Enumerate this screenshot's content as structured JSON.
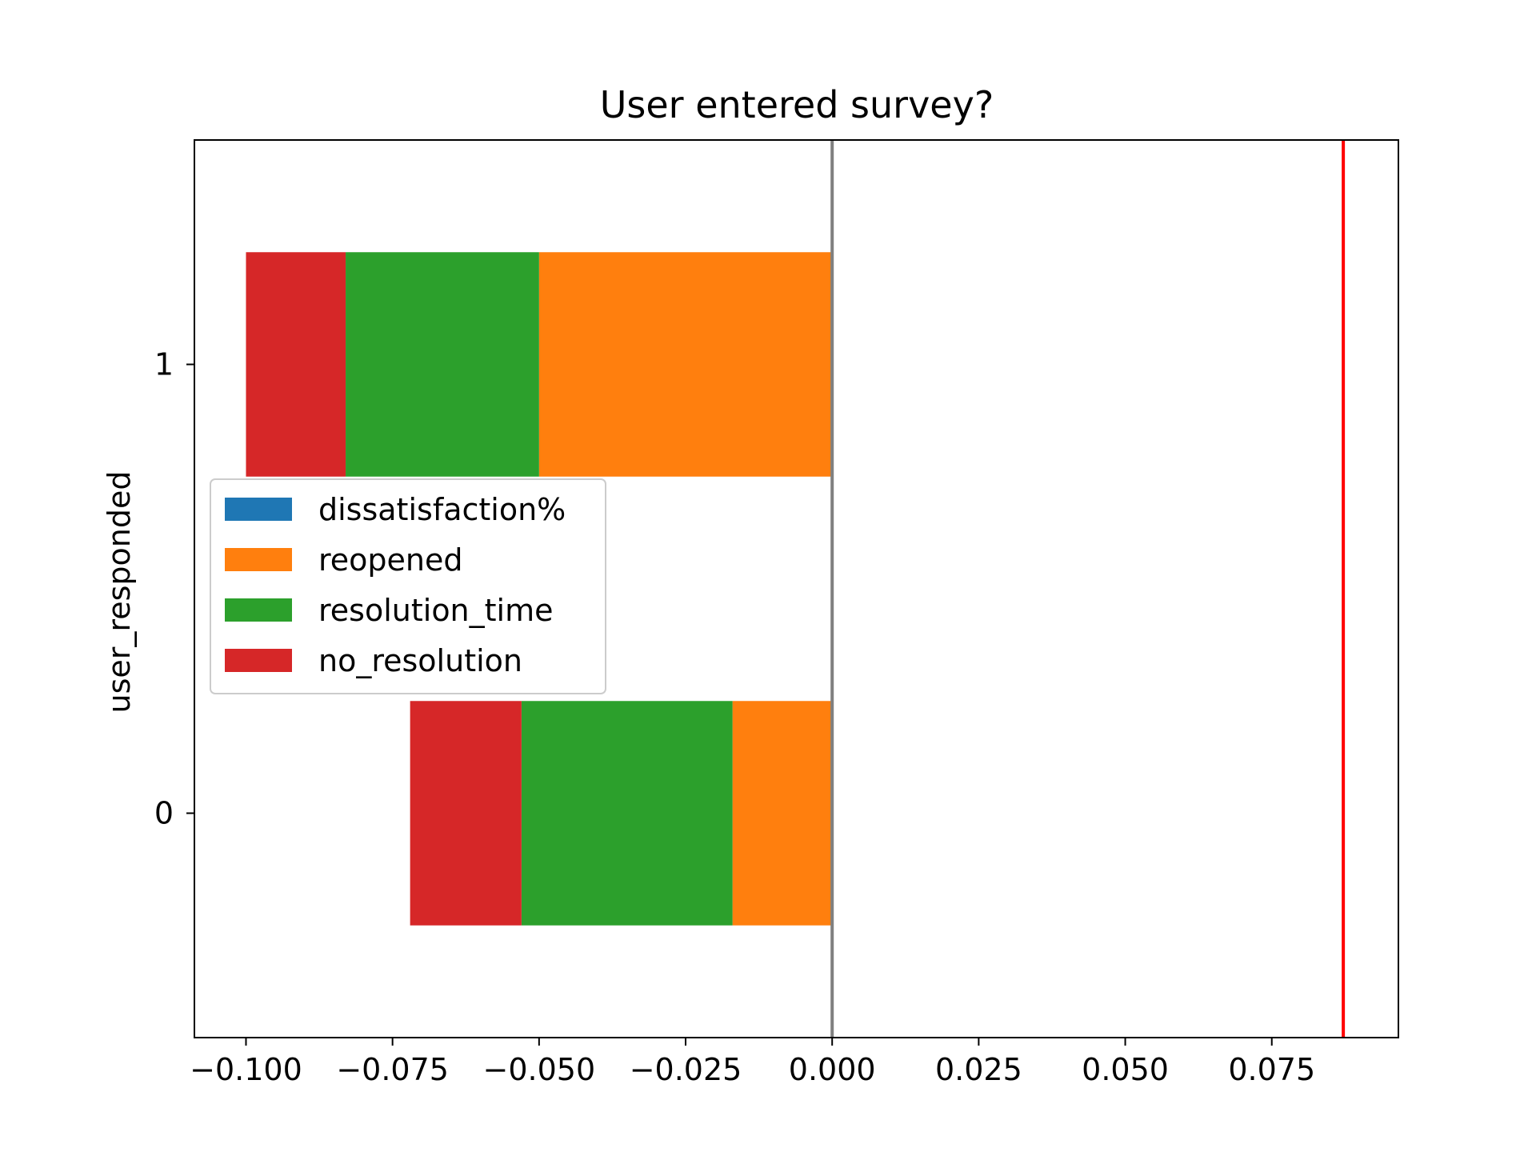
{
  "chart_data": {
    "type": "bar",
    "orientation": "horizontal",
    "stacked": true,
    "stack_direction": "negative",
    "title": "User entered survey?",
    "xlabel": "",
    "ylabel": "user_responded",
    "categories": [
      "0",
      "1"
    ],
    "series": [
      {
        "name": "dissatisfaction%",
        "color": "#1f77b4",
        "values": [
          0.0,
          0.0
        ]
      },
      {
        "name": "reopened",
        "color": "#ff7f0e",
        "values": [
          0.017,
          0.05
        ]
      },
      {
        "name": "resolution_time",
        "color": "#2ca02c",
        "values": [
          0.036,
          0.033
        ]
      },
      {
        "name": "no_resolution",
        "color": "#d62728",
        "values": [
          0.019,
          0.017
        ]
      }
    ],
    "xlim": [
      -0.1088,
      0.0966
    ],
    "ylim": [
      -0.5,
      1.5
    ],
    "xticks": [
      -0.1,
      -0.075,
      -0.05,
      -0.025,
      0.0,
      0.025,
      0.05,
      0.075
    ],
    "xtick_labels": [
      "−0.100",
      "−0.075",
      "−0.050",
      "−0.025",
      "0.000",
      "0.025",
      "0.050",
      "0.075"
    ],
    "yticks": [
      0,
      1
    ],
    "ytick_labels": [
      "0",
      "1"
    ],
    "reference_lines": [
      {
        "x": 0.0,
        "color": "#808080"
      },
      {
        "x": 0.0872,
        "color": "#ff0000"
      }
    ],
    "legend_placement": "center-left",
    "grid": false
  }
}
